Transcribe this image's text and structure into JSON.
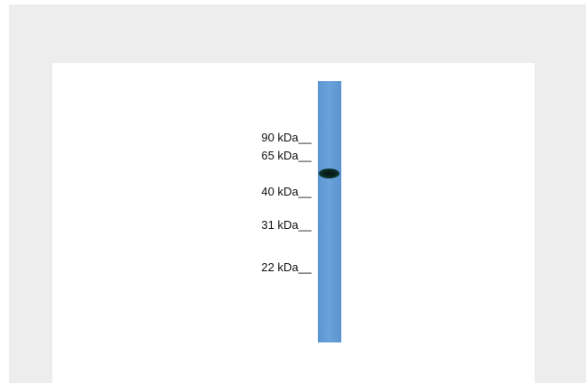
{
  "blot": {
    "markers": [
      {
        "label": "90 kDa__",
        "kda": 90
      },
      {
        "label": "65 kDa__",
        "kda": 65
      },
      {
        "label": "40 kDa__",
        "kda": 40
      },
      {
        "label": "31 kDa__",
        "kda": 31
      },
      {
        "label": "22 kDa__",
        "kda": 22
      }
    ],
    "lane_color": "#6aa2da",
    "band_color": "#0b2b26"
  }
}
